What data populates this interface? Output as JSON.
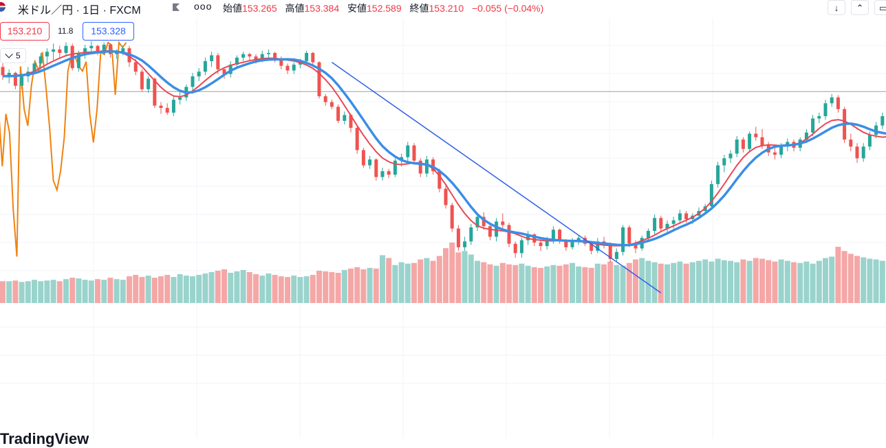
{
  "header": {
    "title": "米ドル／円 · 1日 · FXCM",
    "flag_icon": "us-flag-icon",
    "more_icon": "more-dots-icon",
    "more_label": "ooo",
    "ohlc": {
      "open_label": "始値",
      "open": "153.265",
      "high_label": "高値",
      "high": "153.384",
      "low_label": "安値",
      "low": "152.589",
      "close_label": "終値",
      "close": "153.210",
      "change": "−0.055 (−0.04%)"
    },
    "buttons": {
      "down": "↓",
      "collapse": "⌃",
      "window": "▭"
    }
  },
  "legend": {
    "close_value": "153.210",
    "mid_value": "11.8",
    "ma_value": "153.328",
    "collapse_label": "5"
  },
  "branding": {
    "logo_text": "TradingView"
  },
  "colors": {
    "up": "#26a69a",
    "down": "#ef5350",
    "up_volume": "#99d3cc",
    "down_volume": "#f4a7a6",
    "ma_fast": "#e84855",
    "ma_slow": "#3a8ee6",
    "oscillator": "#f0820f",
    "trendline": "#2f5fe8",
    "price_line": "#9e9e9e"
  },
  "chart_data": {
    "type": "candlestick",
    "title": "",
    "xlabel": "",
    "ylabel": "",
    "grid": true,
    "legend": "top-left",
    "candles": [
      [
        146.5,
        146.8,
        145.4,
        145.8
      ],
      [
        145.8,
        146.3,
        145.1,
        146.0
      ],
      [
        146.0,
        146.1,
        144.6,
        144.9
      ],
      [
        144.9,
        145.9,
        144.6,
        145.7
      ],
      [
        145.7,
        146.5,
        145.2,
        146.1
      ],
      [
        146.1,
        147.0,
        145.9,
        146.8
      ],
      [
        146.8,
        147.7,
        146.2,
        147.4
      ],
      [
        147.4,
        148.1,
        146.7,
        147.8
      ],
      [
        147.8,
        148.5,
        147.1,
        148.0
      ],
      [
        148.0,
        148.3,
        147.3,
        147.7
      ],
      [
        147.7,
        148.6,
        147.4,
        148.3
      ],
      [
        148.3,
        148.5,
        146.2,
        146.4
      ],
      [
        146.4,
        147.9,
        146.1,
        147.7
      ],
      [
        147.7,
        148.4,
        147.2,
        148.1
      ],
      [
        148.1,
        148.7,
        147.8,
        148.3
      ],
      [
        148.3,
        148.4,
        147.5,
        147.8
      ],
      [
        147.8,
        148.6,
        147.6,
        148.4
      ],
      [
        148.4,
        148.5,
        147.3,
        147.6
      ],
      [
        147.6,
        148.0,
        147.2,
        147.8
      ],
      [
        147.8,
        148.3,
        147.5,
        148.1
      ],
      [
        148.1,
        148.3,
        146.5,
        146.9
      ],
      [
        146.9,
        147.2,
        145.8,
        146.1
      ],
      [
        146.1,
        146.3,
        144.4,
        144.6
      ],
      [
        144.6,
        145.7,
        144.3,
        145.5
      ],
      [
        145.5,
        145.6,
        143.0,
        143.2
      ],
      [
        143.2,
        143.5,
        142.5,
        143.0
      ],
      [
        143.0,
        143.4,
        142.4,
        142.6
      ],
      [
        142.6,
        144.0,
        142.3,
        143.7
      ],
      [
        143.7,
        144.4,
        143.3,
        143.9
      ],
      [
        143.9,
        145.0,
        143.6,
        144.8
      ],
      [
        144.8,
        146.0,
        144.4,
        145.7
      ],
      [
        145.7,
        146.4,
        145.3,
        146.1
      ],
      [
        146.1,
        147.3,
        145.8,
        147.0
      ],
      [
        147.0,
        147.8,
        146.5,
        147.5
      ],
      [
        147.5,
        147.7,
        145.9,
        146.3
      ],
      [
        146.3,
        146.5,
        145.5,
        145.9
      ],
      [
        145.9,
        147.0,
        145.6,
        146.7
      ],
      [
        146.7,
        147.5,
        146.4,
        147.3
      ],
      [
        147.3,
        147.8,
        147.0,
        147.6
      ],
      [
        147.6,
        147.7,
        147.0,
        147.4
      ],
      [
        147.4,
        147.6,
        146.8,
        147.1
      ],
      [
        147.1,
        147.9,
        146.9,
        147.6
      ],
      [
        147.6,
        148.0,
        147.3,
        147.7
      ],
      [
        147.7,
        147.8,
        146.9,
        147.2
      ],
      [
        147.2,
        147.4,
        146.3,
        146.6
      ],
      [
        146.6,
        146.8,
        145.9,
        146.2
      ],
      [
        146.2,
        146.9,
        145.9,
        146.7
      ],
      [
        146.7,
        147.2,
        146.4,
        147.0
      ],
      [
        147.0,
        147.9,
        146.8,
        147.7
      ],
      [
        147.7,
        147.8,
        146.7,
        146.9
      ],
      [
        146.9,
        147.0,
        143.8,
        144.0
      ],
      [
        144.0,
        144.2,
        143.2,
        143.5
      ],
      [
        143.5,
        143.7,
        142.9,
        143.1
      ],
      [
        143.1,
        143.3,
        141.7,
        141.9
      ],
      [
        141.9,
        142.7,
        141.6,
        142.4
      ],
      [
        142.4,
        142.5,
        140.9,
        141.3
      ],
      [
        141.3,
        141.5,
        139.1,
        139.4
      ],
      [
        139.4,
        139.6,
        137.9,
        138.1
      ],
      [
        138.1,
        138.9,
        137.8,
        138.6
      ],
      [
        138.6,
        138.7,
        136.8,
        137.1
      ],
      [
        137.1,
        137.9,
        136.8,
        137.6
      ],
      [
        137.6,
        137.8,
        137.0,
        137.3
      ],
      [
        137.3,
        138.7,
        137.1,
        138.5
      ],
      [
        138.5,
        139.1,
        138.0,
        138.8
      ],
      [
        138.8,
        140.1,
        138.4,
        139.8
      ],
      [
        139.8,
        140.0,
        138.2,
        138.5
      ],
      [
        138.5,
        138.7,
        137.1,
        137.4
      ],
      [
        137.4,
        138.9,
        137.1,
        138.6
      ],
      [
        138.6,
        138.8,
        137.3,
        137.6
      ],
      [
        137.6,
        137.8,
        135.8,
        136.1
      ],
      [
        136.1,
        136.4,
        134.4,
        134.7
      ],
      [
        134.7,
        134.9,
        132.4,
        132.7
      ],
      [
        132.7,
        133.0,
        130.8,
        131.1
      ],
      [
        131.1,
        132.0,
        130.8,
        131.6
      ],
      [
        131.6,
        133.1,
        131.3,
        132.8
      ],
      [
        132.8,
        134.0,
        132.5,
        133.7
      ],
      [
        133.7,
        134.1,
        132.6,
        132.9
      ],
      [
        132.9,
        133.2,
        131.7,
        132.0
      ],
      [
        132.0,
        133.6,
        131.6,
        133.3
      ],
      [
        133.3,
        134.0,
        132.7,
        133.0
      ],
      [
        133.0,
        133.2,
        131.1,
        131.4
      ],
      [
        131.4,
        131.6,
        130.2,
        130.6
      ],
      [
        130.6,
        131.9,
        130.2,
        131.7
      ],
      [
        131.7,
        132.5,
        131.3,
        132.2
      ],
      [
        132.2,
        132.3,
        131.2,
        131.5
      ],
      [
        131.5,
        131.7,
        130.8,
        131.2
      ],
      [
        131.2,
        132.0,
        130.9,
        131.7
      ],
      [
        131.7,
        132.9,
        131.4,
        132.6
      ],
      [
        132.6,
        132.7,
        131.4,
        131.6
      ],
      [
        131.6,
        131.8,
        130.8,
        131.1
      ],
      [
        131.1,
        131.9,
        130.9,
        131.6
      ],
      [
        131.6,
        132.1,
        131.3,
        131.9
      ],
      [
        131.9,
        132.1,
        131.2,
        131.4
      ],
      [
        131.4,
        131.6,
        130.5,
        130.8
      ],
      [
        130.8,
        131.9,
        130.6,
        131.6
      ],
      [
        131.6,
        132.0,
        131.0,
        131.3
      ],
      [
        131.3,
        131.5,
        129.8,
        130.1
      ],
      [
        130.1,
        131.0,
        129.8,
        130.7
      ],
      [
        130.7,
        133.0,
        130.4,
        132.8
      ],
      [
        132.8,
        133.0,
        131.1,
        131.4
      ],
      [
        131.4,
        131.7,
        130.6,
        131.0
      ],
      [
        131.0,
        132.1,
        130.8,
        131.9
      ],
      [
        131.9,
        132.7,
        131.6,
        132.5
      ],
      [
        132.5,
        133.9,
        132.2,
        133.6
      ],
      [
        133.6,
        133.8,
        132.4,
        132.7
      ],
      [
        132.7,
        133.4,
        132.4,
        133.1
      ],
      [
        133.1,
        133.7,
        132.7,
        133.4
      ],
      [
        133.4,
        134.3,
        133.1,
        134.0
      ],
      [
        134.0,
        134.2,
        133.2,
        133.5
      ],
      [
        133.5,
        134.0,
        133.1,
        133.8
      ],
      [
        133.8,
        134.5,
        133.5,
        134.2
      ],
      [
        134.2,
        134.8,
        133.9,
        134.6
      ],
      [
        134.6,
        136.8,
        134.3,
        136.5
      ],
      [
        136.5,
        138.4,
        136.2,
        138.1
      ],
      [
        138.1,
        139.0,
        137.5,
        138.7
      ],
      [
        138.7,
        139.4,
        138.3,
        139.1
      ],
      [
        139.1,
        140.6,
        138.8,
        140.3
      ],
      [
        140.3,
        140.5,
        139.2,
        139.5
      ],
      [
        139.5,
        141.0,
        139.2,
        140.8
      ],
      [
        140.8,
        141.4,
        140.2,
        140.5
      ],
      [
        140.5,
        141.2,
        139.5,
        139.8
      ],
      [
        139.8,
        140.1,
        138.9,
        139.2
      ],
      [
        139.2,
        139.6,
        138.6,
        139.0
      ],
      [
        139.0,
        140.0,
        138.7,
        139.7
      ],
      [
        139.7,
        140.4,
        139.3,
        140.1
      ],
      [
        140.1,
        140.3,
        139.3,
        139.6
      ],
      [
        139.6,
        140.5,
        139.3,
        140.3
      ],
      [
        140.3,
        141.2,
        140.0,
        140.9
      ],
      [
        140.9,
        142.4,
        140.6,
        142.1
      ],
      [
        142.1,
        142.6,
        141.7,
        142.3
      ],
      [
        142.3,
        143.7,
        142.0,
        143.4
      ],
      [
        143.4,
        144.2,
        143.1,
        143.9
      ],
      [
        143.9,
        144.1,
        142.6,
        142.9
      ],
      [
        142.9,
        143.1,
        140.0,
        140.3
      ],
      [
        140.3,
        140.8,
        139.3,
        139.7
      ],
      [
        139.7,
        140.0,
        138.3,
        138.7
      ],
      [
        138.7,
        140.0,
        138.4,
        139.7
      ],
      [
        139.7,
        141.0,
        139.4,
        140.7
      ],
      [
        140.7,
        141.8,
        140.4,
        141.5
      ],
      [
        141.5,
        142.6,
        141.2,
        142.3
      ],
      [
        142.3,
        142.5,
        140.8,
        141.1
      ],
      [
        141.1,
        141.3,
        140.3,
        140.6
      ]
    ],
    "volume": [
      31,
      31,
      32,
      30,
      31,
      33,
      31,
      32,
      33,
      31,
      34,
      36,
      35,
      33,
      32,
      34,
      33,
      36,
      34,
      33,
      38,
      40,
      37,
      39,
      36,
      38,
      40,
      37,
      41,
      39,
      38,
      40,
      42,
      44,
      46,
      48,
      43,
      45,
      47,
      44,
      41,
      39,
      42,
      40,
      38,
      37,
      39,
      37,
      38,
      40,
      46,
      45,
      44,
      43,
      47,
      49,
      51,
      48,
      50,
      49,
      68,
      64,
      54,
      58,
      56,
      57,
      62,
      64,
      60,
      67,
      78,
      86,
      72,
      74,
      69,
      60,
      58,
      55,
      53,
      57,
      55,
      54,
      56,
      53,
      51,
      50,
      52,
      54,
      53,
      55,
      57,
      52,
      51,
      50,
      56,
      55,
      59,
      54,
      53,
      57,
      62,
      64,
      60,
      58,
      56,
      55,
      57,
      59,
      56,
      58,
      60,
      62,
      59,
      63,
      61,
      60,
      58,
      62,
      60,
      64,
      63,
      61,
      59,
      62,
      60,
      58,
      57,
      59,
      56,
      60,
      64,
      66,
      80,
      74,
      70,
      67,
      65,
      63,
      62,
      60
    ],
    "oscillator": [
      72,
      48,
      70,
      62,
      30,
      10,
      90,
      72,
      65,
      82,
      92,
      88,
      96,
      81,
      64,
      42,
      38,
      46,
      60,
      88,
      95,
      94,
      90,
      88,
      92,
      70,
      58,
      72,
      96,
      95,
      100,
      99,
      78,
      100,
      98,
      100
    ],
    "ma_fast_period": 5,
    "ma_slow_period": 20,
    "trendline": [
      [
        52,
        146.9
      ],
      [
        104,
        127.2
      ]
    ],
    "price_line": 144.4
  }
}
